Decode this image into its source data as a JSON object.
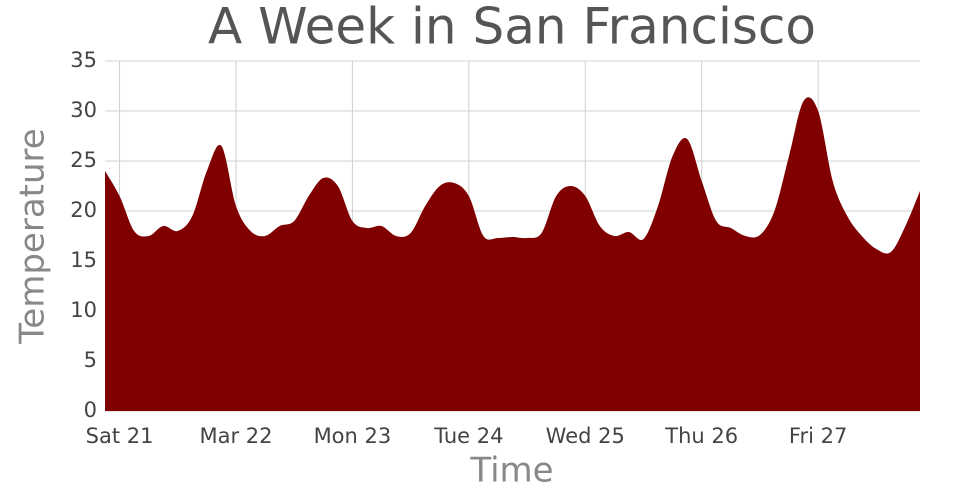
{
  "chart_data": {
    "type": "area",
    "title": "A Week in San Francisco",
    "x_label": "Time",
    "y_label": "Temperature",
    "color": "#800000",
    "grid": true,
    "x": [
      -3,
      0,
      3,
      6,
      9,
      12,
      15,
      18,
      21,
      24,
      27,
      30,
      33,
      36,
      39,
      42,
      45,
      48,
      51,
      54,
      57,
      60,
      63,
      66,
      69,
      72,
      75,
      78,
      81,
      84,
      87,
      90,
      93,
      96,
      99,
      102,
      105,
      108,
      111,
      114,
      117,
      120,
      123,
      126,
      129,
      132,
      135,
      138,
      141,
      144,
      147,
      150,
      153,
      156,
      159,
      162,
      165
    ],
    "values": [
      24,
      21.5,
      18,
      17.5,
      18.5,
      18,
      19.5,
      24,
      26.5,
      20.5,
      18,
      17.5,
      18.5,
      19,
      21.5,
      23.3,
      22.5,
      19,
      18.3,
      18.5,
      17.5,
      17.8,
      20.5,
      22.5,
      22.8,
      21.5,
      17.5,
      17.3,
      17.4,
      17.3,
      17.8,
      21.5,
      22.5,
      21.5,
      18.5,
      17.5,
      17.9,
      17.2,
      20.5,
      25.5,
      27.2,
      23,
      19,
      18.3,
      17.5,
      17.6,
      20,
      25.5,
      31,
      30,
      23,
      19.5,
      17.5,
      16.2,
      15.9,
      18.5,
      22
    ],
    "xlim": [
      -3,
      165
    ],
    "xticks": [
      {
        "value": 0,
        "label": "Sat 21"
      },
      {
        "value": 24,
        "label": "Mar 22"
      },
      {
        "value": 48,
        "label": "Mon 23"
      },
      {
        "value": 72,
        "label": "Tue 24"
      },
      {
        "value": 96,
        "label": "Wed 25"
      },
      {
        "value": 120,
        "label": "Thu 26"
      },
      {
        "value": 144,
        "label": "Fri 27"
      }
    ],
    "ylim": [
      0,
      35
    ],
    "yticks": [
      0,
      5,
      10,
      15,
      20,
      25,
      30,
      35
    ]
  }
}
